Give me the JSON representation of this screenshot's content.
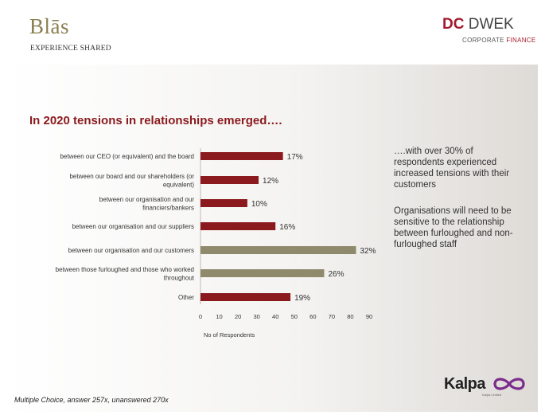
{
  "header": {
    "blas_logo": "Blās",
    "blas_tagline": "EXPERIENCE SHARED",
    "dc_logo_dc": "DC",
    "dc_logo_dwek": "DWEK",
    "dc_sub_corporate": "CORPORATE",
    "dc_sub_finance": "FINANCE"
  },
  "slide": {
    "title": "In 2020 tensions in relationships emerged….",
    "side_text_1": "….with over 30% of respondents experienced increased tensions with their customers",
    "side_text_2": "Organisations will need to be sensitive to the relationship between furloughed and non-furloughed staff",
    "footnote": "Multiple Choice, answer 257x, unanswered 270x"
  },
  "footer": {
    "kalpa_logo": "Kalpa",
    "kalpa_sub": "Kalpa Limited"
  },
  "colors": {
    "bar_primary": "#8b1a1e",
    "bar_highlight": "#8f8a6c",
    "title": "#8b1a1e"
  },
  "chart_data": {
    "type": "bar",
    "orientation": "horizontal",
    "categories": [
      [
        "between our CEO (or equivalent) and the board"
      ],
      [
        "between our board and our shareholders (or",
        "equivalent)"
      ],
      [
        "between our organisation and our",
        "financiers/bankers"
      ],
      [
        "between our organisation and our suppliers"
      ],
      [
        "between our organisation and our customers"
      ],
      [
        "between those furloughed and those who worked",
        "throughout"
      ],
      [
        "Other"
      ]
    ],
    "values": [
      44,
      31,
      25,
      40,
      83,
      66,
      48
    ],
    "data_labels": [
      "17%",
      "12%",
      "10%",
      "16%",
      "32%",
      "26%",
      "19%"
    ],
    "highlight": [
      false,
      false,
      false,
      false,
      true,
      true,
      false
    ],
    "xlabel": "No of Respondents",
    "xlim": [
      0,
      90
    ],
    "xticks": [
      0,
      10,
      20,
      30,
      40,
      50,
      60,
      70,
      80,
      90
    ],
    "grid": false,
    "legend": "none"
  }
}
